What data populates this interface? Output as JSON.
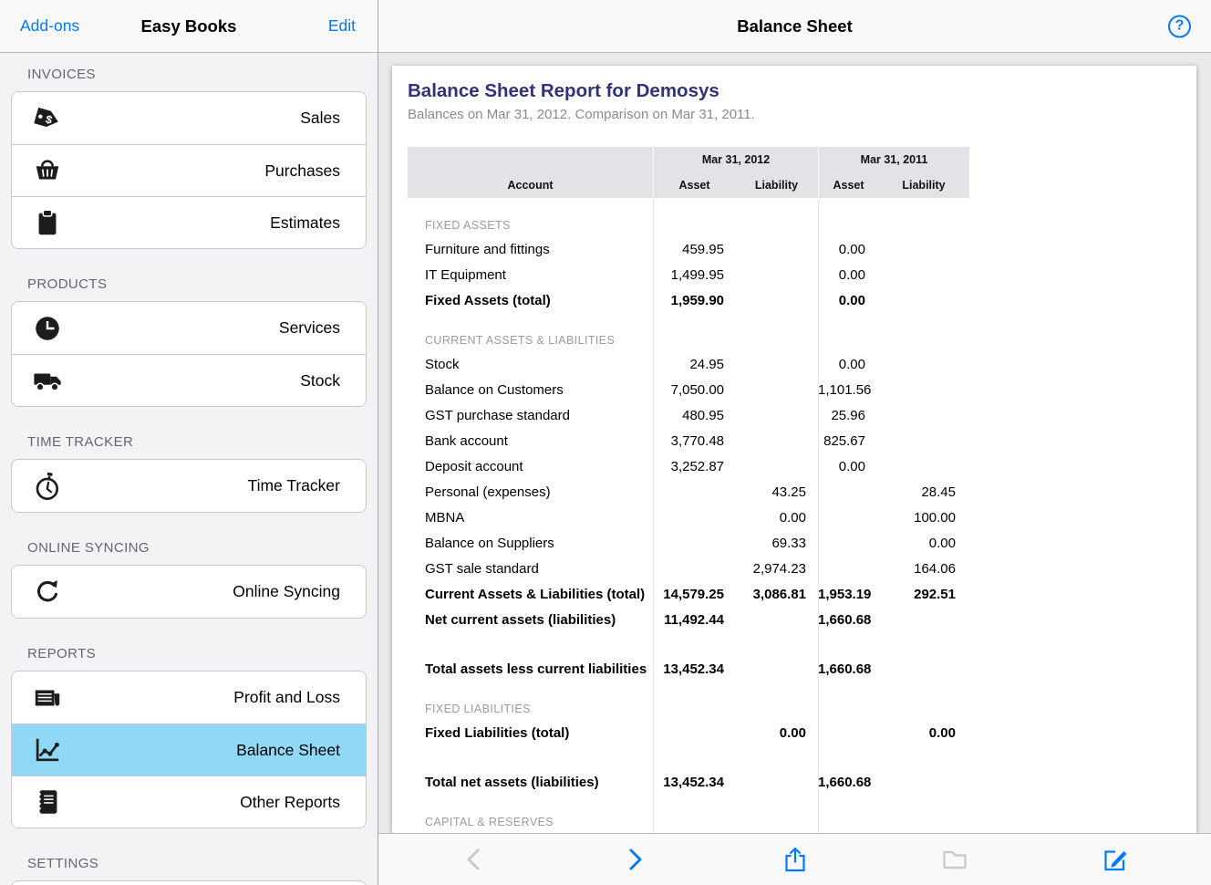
{
  "colors": {
    "accent_blue": "#007aff",
    "selected_item": "#8fd9f6",
    "report_title": "#32327a"
  },
  "sidebar": {
    "nav": {
      "addons": "Add-ons",
      "title": "Easy Books",
      "edit": "Edit"
    },
    "sections": [
      {
        "label": "INVOICES",
        "items": [
          {
            "icon": "price-tag",
            "label": "Sales"
          },
          {
            "icon": "basket",
            "label": "Purchases"
          },
          {
            "icon": "clipboard",
            "label": "Estimates"
          }
        ]
      },
      {
        "label": "PRODUCTS",
        "items": [
          {
            "icon": "clock",
            "label": "Services"
          },
          {
            "icon": "truck",
            "label": "Stock"
          }
        ]
      },
      {
        "label": "TIME TRACKER",
        "items": [
          {
            "icon": "stopwatch",
            "label": "Time Tracker"
          }
        ]
      },
      {
        "label": "ONLINE SYNCING",
        "items": [
          {
            "icon": "sync",
            "label": "Online Syncing"
          }
        ]
      },
      {
        "label": "REPORTS",
        "items": [
          {
            "icon": "newspaper",
            "label": "Profit and Loss"
          },
          {
            "icon": "line-chart",
            "label": "Balance Sheet",
            "selected": true
          },
          {
            "icon": "notebook",
            "label": "Other Reports"
          }
        ]
      },
      {
        "label": "SETTINGS",
        "items": [],
        "stub": true
      }
    ]
  },
  "header": {
    "title": "Balance Sheet",
    "help_label": "?"
  },
  "report": {
    "title": "Balance Sheet Report for Demosys",
    "subtitle": "Balances on Mar 31, 2012. Comparison on Mar 31, 2011.",
    "column_groups": [
      "Mar 31, 2012",
      "Mar 31, 2011"
    ],
    "column_headers": [
      "Account",
      "Asset",
      "Liability",
      "Asset",
      "Liability"
    ],
    "rows": [
      {
        "type": "section",
        "label": "FIXED ASSETS"
      },
      {
        "type": "data",
        "label": "Furniture and fittings",
        "values": [
          "459.95",
          "",
          "0.00",
          ""
        ]
      },
      {
        "type": "data",
        "label": "IT Equipment",
        "values": [
          "1,499.95",
          "",
          "0.00",
          ""
        ]
      },
      {
        "type": "total",
        "label": "Fixed Assets (total)",
        "values": [
          "1,959.90",
          "",
          "0.00",
          ""
        ]
      },
      {
        "type": "section",
        "label": "CURRENT ASSETS & LIABILITIES"
      },
      {
        "type": "data",
        "label": "Stock",
        "values": [
          "24.95",
          "",
          "0.00",
          ""
        ]
      },
      {
        "type": "data",
        "label": "Balance on Customers",
        "values": [
          "7,050.00",
          "",
          "1,101.56",
          ""
        ]
      },
      {
        "type": "data",
        "label": "GST purchase standard",
        "values": [
          "480.95",
          "",
          "25.96",
          ""
        ]
      },
      {
        "type": "data",
        "label": "Bank account",
        "values": [
          "3,770.48",
          "",
          "825.67",
          ""
        ]
      },
      {
        "type": "data",
        "label": "Deposit account",
        "values": [
          "3,252.87",
          "",
          "0.00",
          ""
        ]
      },
      {
        "type": "data",
        "label": "Personal (expenses)",
        "values": [
          "",
          "43.25",
          "",
          "28.45"
        ]
      },
      {
        "type": "data",
        "label": "MBNA",
        "values": [
          "",
          "0.00",
          "",
          "100.00"
        ]
      },
      {
        "type": "data",
        "label": "Balance on Suppliers",
        "values": [
          "",
          "69.33",
          "",
          "0.00"
        ]
      },
      {
        "type": "data",
        "label": "GST sale standard",
        "values": [
          "",
          "2,974.23",
          "",
          "164.06"
        ]
      },
      {
        "type": "total",
        "label": "Current Assets & Liabilities (total)",
        "values": [
          "14,579.25",
          "3,086.81",
          "1,953.19",
          "292.51"
        ]
      },
      {
        "type": "total",
        "label": "Net current assets (liabilities)",
        "values": [
          "11,492.44",
          "",
          "1,660.68",
          ""
        ]
      },
      {
        "type": "spacer"
      },
      {
        "type": "total",
        "label": "Total assets less current liabilities",
        "values": [
          "13,452.34",
          "",
          "1,660.68",
          ""
        ]
      },
      {
        "type": "section",
        "label": "FIXED LIABILITIES"
      },
      {
        "type": "total",
        "label": "Fixed Liabilities (total)",
        "values": [
          "",
          "0.00",
          "",
          "0.00"
        ]
      },
      {
        "type": "spacer"
      },
      {
        "type": "total",
        "label": "Total net assets (liabilities)",
        "values": [
          "13,452.34",
          "",
          "1,660.68",
          ""
        ]
      },
      {
        "type": "section",
        "label": "CAPITAL & RESERVES"
      }
    ]
  },
  "toolbar": {
    "buttons": [
      {
        "icon": "chevron-left",
        "state": "disabled"
      },
      {
        "icon": "chevron-right",
        "state": "enabled"
      },
      {
        "icon": "share",
        "state": "enabled"
      },
      {
        "icon": "folder",
        "state": "disabled"
      },
      {
        "icon": "compose",
        "state": "enabled"
      }
    ]
  }
}
